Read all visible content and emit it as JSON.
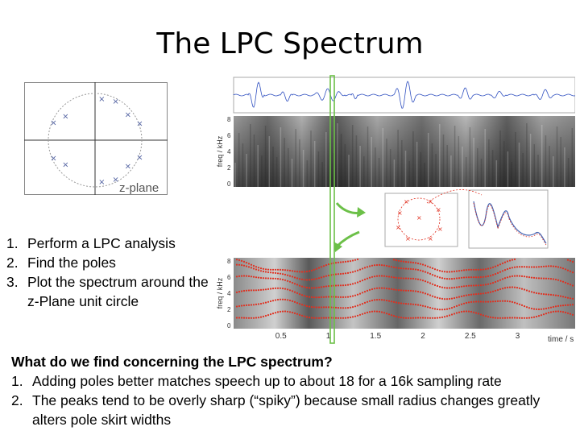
{
  "title": "The LPC Spectrum",
  "zplane_label": "z-plane",
  "steps": [
    {
      "num": "1.",
      "text": "Perform a LPC analysis"
    },
    {
      "num": "2.",
      "text": "Find the poles"
    },
    {
      "num": "3.",
      "text": "Plot the spectrum around the z-Plane unit circle"
    }
  ],
  "findings": {
    "question": "What do we find concerning the LPC spectrum?",
    "items": [
      {
        "num": "1.",
        "text": "Adding poles better matches speech up to about 18 for a 16k sampling rate"
      },
      {
        "num": "2.",
        "text": "The peaks tend to be overly sharp (“spiky”) because small radius changes greatly alters pole skirt widths"
      }
    ]
  },
  "figure": {
    "freq_axis_label": "freq / kHz",
    "freq_ticks": [
      "8",
      "6",
      "4",
      "2",
      "0"
    ],
    "time_axis_label": "time / s",
    "time_ticks": [
      "0.5",
      "1",
      "1.5",
      "2",
      "2.5",
      "3"
    ]
  },
  "colors": {
    "waveform": "#3050c0",
    "formant_tracks": "#e03020",
    "time_marker": "#6cc048",
    "pole_marks": "#5060a0"
  }
}
